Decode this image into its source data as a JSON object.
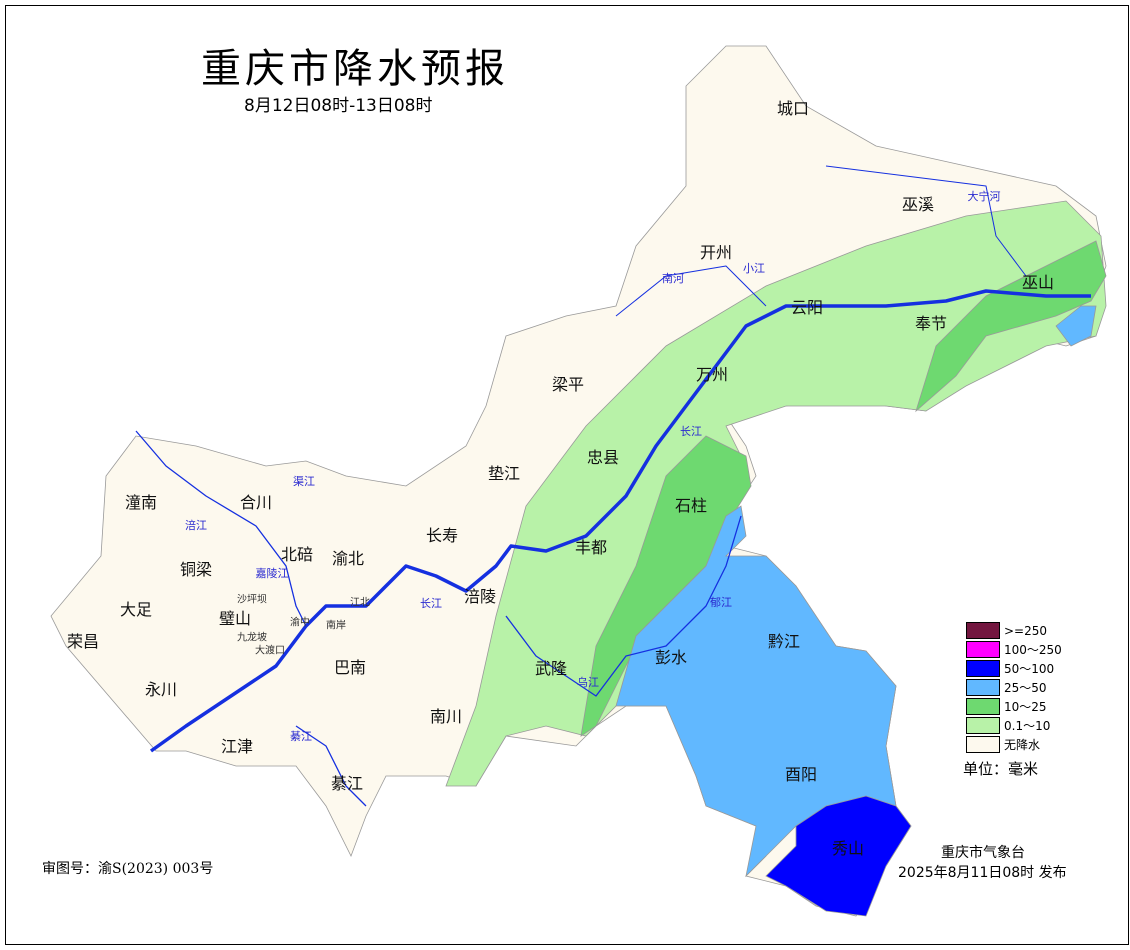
{
  "title": "重庆市降水预报",
  "subtitle": "8月12日08时-13日08时",
  "districts": [
    "城口",
    "巫溪",
    "开州",
    "云阳",
    "巫山",
    "奉节",
    "梁平",
    "万州",
    "忠县",
    "垫江",
    "石柱",
    "长寿",
    "丰都",
    "涪陵",
    "潼南",
    "合川",
    "铜梁",
    "北碚",
    "渝北",
    "大足",
    "璧山",
    "荣昌",
    "永川",
    "巴南",
    "武隆",
    "彭水",
    "黔江",
    "南川",
    "江津",
    "綦江",
    "酉阳",
    "秀山"
  ],
  "small_districts": [
    "沙坪坝",
    "渝中",
    "江北",
    "南岸",
    "九龙坡",
    "大渡口"
  ],
  "rivers": [
    "大宁河",
    "南河",
    "小江",
    "长江",
    "渠江",
    "涪江",
    "嘉陵江",
    "长江",
    "乌江",
    "郁江",
    "綦江"
  ],
  "legend": {
    "items": [
      {
        "label": ">=250",
        "color": "#73163f"
      },
      {
        "label": "100～250",
        "color": "#ff00ff"
      },
      {
        "label": "50～100",
        "color": "#0000ff"
      },
      {
        "label": "25～50",
        "color": "#61b8ff"
      },
      {
        "label": "10～25",
        "color": "#6ed970"
      },
      {
        "label": "0.1～10",
        "color": "#b8f2a8"
      },
      {
        "label": "无降水",
        "color": "#fdf9ee"
      }
    ],
    "unit": "单位：毫米"
  },
  "issuer": "重庆市气象台",
  "issued": "2025年8月11日08时  发布",
  "approval": "审图号：渝S(2023) 003号"
}
